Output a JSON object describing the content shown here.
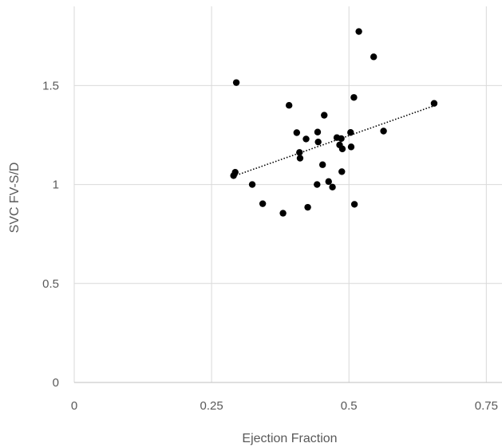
{
  "chart_data": {
    "type": "scatter",
    "title": "",
    "xlabel": "Ejection Fraction",
    "ylabel": "SVC FV-S/D",
    "xlim": [
      0,
      0.78
    ],
    "ylim": [
      0,
      1.9
    ],
    "x_ticks": [
      0,
      0.25,
      0.5,
      0.75
    ],
    "x_tick_labels": [
      "0",
      "0.25",
      "0.5",
      "0.75"
    ],
    "y_ticks": [
      0,
      0.5,
      1,
      1.5
    ],
    "y_tick_labels": [
      "0",
      "0.5",
      "1",
      "1.5"
    ],
    "grid": true,
    "legend": "none",
    "colors": {
      "points": "#000000",
      "grid": "#d9d9d9",
      "axis": "#bfbfbf",
      "text": "#595959"
    },
    "series": [
      {
        "points": [
          {
            "x": 0.29,
            "y": 1.045
          },
          {
            "x": 0.293,
            "y": 1.062
          },
          {
            "x": 0.295,
            "y": 1.515
          },
          {
            "x": 0.324,
            "y": 1.0
          },
          {
            "x": 0.343,
            "y": 0.903
          },
          {
            "x": 0.38,
            "y": 0.855
          },
          {
            "x": 0.391,
            "y": 1.4
          },
          {
            "x": 0.405,
            "y": 1.262
          },
          {
            "x": 0.41,
            "y": 1.162
          },
          {
            "x": 0.411,
            "y": 1.133
          },
          {
            "x": 0.422,
            "y": 1.23
          },
          {
            "x": 0.425,
            "y": 0.885
          },
          {
            "x": 0.442,
            "y": 1.0
          },
          {
            "x": 0.443,
            "y": 1.265
          },
          {
            "x": 0.444,
            "y": 1.215
          },
          {
            "x": 0.452,
            "y": 1.1
          },
          {
            "x": 0.455,
            "y": 1.35
          },
          {
            "x": 0.463,
            "y": 1.015
          },
          {
            "x": 0.47,
            "y": 0.987
          },
          {
            "x": 0.478,
            "y": 1.237
          },
          {
            "x": 0.483,
            "y": 1.2
          },
          {
            "x": 0.486,
            "y": 1.232
          },
          {
            "x": 0.487,
            "y": 1.065
          },
          {
            "x": 0.488,
            "y": 1.18
          },
          {
            "x": 0.503,
            "y": 1.263
          },
          {
            "x": 0.504,
            "y": 1.19
          },
          {
            "x": 0.509,
            "y": 1.44
          },
          {
            "x": 0.51,
            "y": 0.9
          },
          {
            "x": 0.518,
            "y": 1.773
          },
          {
            "x": 0.545,
            "y": 1.645
          },
          {
            "x": 0.563,
            "y": 1.27
          },
          {
            "x": 0.655,
            "y": 1.41
          }
        ]
      }
    ],
    "trendline": {
      "style": "dotted",
      "x": [
        0.29,
        0.655
      ],
      "y": [
        1.042,
        1.398
      ]
    }
  }
}
